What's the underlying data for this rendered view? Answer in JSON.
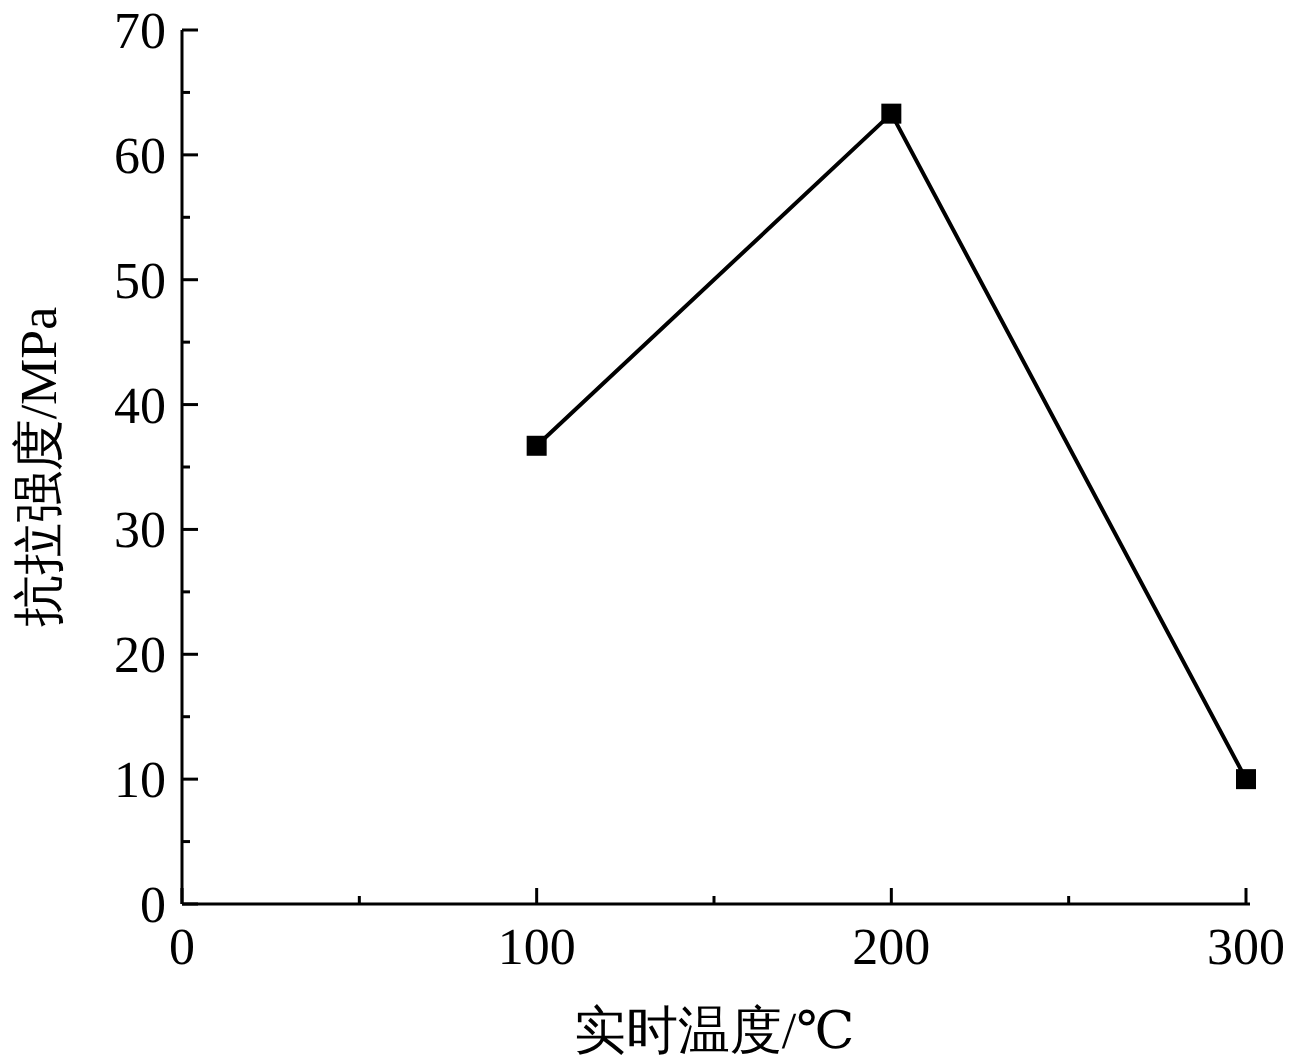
{
  "chart_data": {
    "type": "line",
    "xlabel": "实时温度/℃",
    "ylabel": "抗拉强度/MPa",
    "x": [
      100,
      200,
      300
    ],
    "series": [
      {
        "color": "#000000",
        "values": [
          36.7,
          63.3,
          10
        ]
      }
    ],
    "xlim": [
      0,
      300
    ],
    "ylim": [
      0,
      70
    ],
    "xticks": [
      0,
      100,
      200,
      300
    ],
    "yticks": [
      0,
      10,
      20,
      30,
      40,
      50,
      60,
      70
    ],
    "marker": "square",
    "line_style": "solid"
  }
}
